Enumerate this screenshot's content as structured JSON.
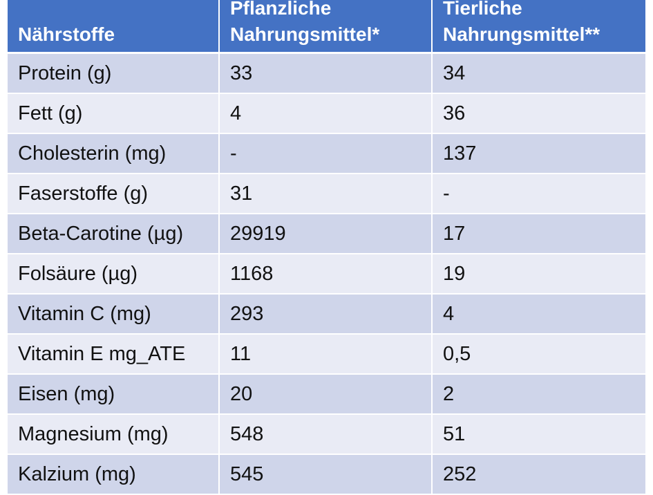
{
  "table": {
    "headers": [
      "Nährstoffe",
      "Pflanzliche Nahrungsmittel*",
      "Tierliche Nahrungsmittel**"
    ],
    "rows": [
      [
        "Protein (g)",
        "33",
        "34"
      ],
      [
        "Fett (g)",
        "4",
        "36"
      ],
      [
        "Cholesterin (mg)",
        "-",
        "137"
      ],
      [
        "Faserstoffe (g)",
        "31",
        "-"
      ],
      [
        "Beta-Carotine (µg)",
        "29919",
        "17"
      ],
      [
        "Folsäure (µg)",
        "1168",
        "19"
      ],
      [
        "Vitamin C (mg)",
        "293",
        "4"
      ],
      [
        "Vitamin E mg_ATE",
        "11",
        "0,5"
      ],
      [
        "Eisen (mg)",
        "20",
        "2"
      ],
      [
        "Magnesium (mg)",
        "548",
        "51"
      ],
      [
        "Kalzium (mg)",
        "545",
        "252"
      ]
    ]
  },
  "colors": {
    "header_bg": "#4472c4",
    "row_odd_bg": "#cfd5ea",
    "row_even_bg": "#e9ebf5"
  }
}
